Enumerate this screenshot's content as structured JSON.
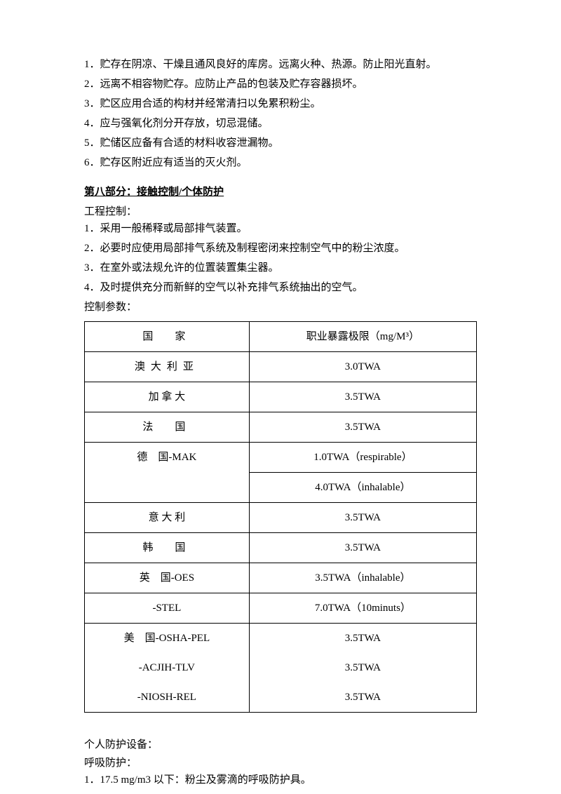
{
  "storage": {
    "items": [
      "1．贮存在阴凉、干燥且通风良好的库房。远离火种、热源。防止阳光直射。",
      "2．远离不相容物贮存。应防止产品的包装及贮存容器损坏。",
      "3．贮区应用合适的构材并经常清扫以免累积粉尘。",
      "4．应与强氧化剂分开存放，切忌混储。",
      "5．贮储区应备有合适的材料收容泄漏物。",
      "6．贮存区附近应有适当的灭火剂。"
    ]
  },
  "section8": {
    "title": "第八部分：接触控制/个体防护",
    "engLabel": "工程控制：",
    "engItems": [
      "1．采用一般稀释或局部排气装置。",
      "2．必要时应使用局部排气系统及制程密闭来控制空气中的粉尘浓度。",
      "3．在室外或法规允许的位置装置集尘器。",
      "4．及时提供充分而新鲜的空气以补充排气系统抽出的空气。"
    ],
    "controlLabel": "控制参数：",
    "table": {
      "headers": [
        "国　家",
        "职业暴露极限（mg/M³）"
      ],
      "rows": [
        {
          "country": "澳大利亚",
          "value": "3.0TWA",
          "spacing": true
        },
        {
          "country": "加 拿 大",
          "value": "3.5TWA",
          "spacing": false
        },
        {
          "country": "法　国",
          "value": "3.5TWA",
          "spacing": true
        },
        {
          "country": "德　国-MAK",
          "value": "1.0TWA（respirable）",
          "spacing": false,
          "rowspan": 2,
          "sub": "4.0TWA（inhalable）"
        },
        {
          "country": "意 大 利",
          "value": "3.5TWA",
          "spacing": false
        },
        {
          "country": "韩　国",
          "value": "3.5TWA",
          "spacing": true
        },
        {
          "country": "英　国-OES",
          "value": "3.5TWA（inhalable）",
          "spacing": false
        },
        {
          "country": "-STEL",
          "value": "7.0TWA（10minuts）",
          "spacing": false
        },
        {
          "country": "美　国-OSHA-PEL",
          "value": "3.5TWA",
          "spacing": false,
          "noBottom": true
        },
        {
          "country": "-ACJIH-TLV",
          "value": "3.5TWA",
          "spacing": false,
          "noTop": true,
          "noBottom": true
        },
        {
          "country": "-NIOSH-REL",
          "value": "3.5TWA",
          "spacing": false,
          "noTop": true
        }
      ]
    },
    "ppe": {
      "label": "个人防护设备：",
      "respLabel": "呼吸防护：",
      "respItem": "1．17.5 mg/m3 以下：粉尘及雾滴的呼吸防护具。"
    }
  }
}
